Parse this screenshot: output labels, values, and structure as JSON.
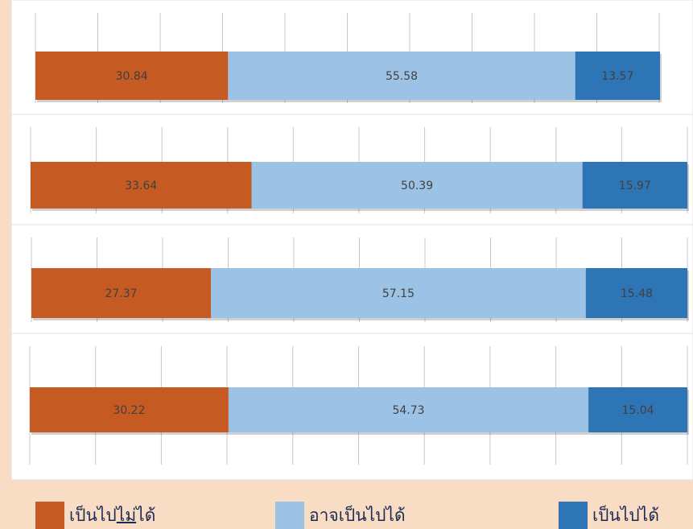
{
  "colors": {
    "background": "#f8dcc3",
    "panel": "#ffffff",
    "grid": "#c8c8c8",
    "text": "#404040",
    "legend_text": "#1b2a55"
  },
  "chart_data": {
    "type": "bar",
    "stacked": true,
    "orientation": "horizontal",
    "percent_scale": [
      0,
      100
    ],
    "grid": true,
    "legend_position": "bottom",
    "series": [
      {
        "name": "เป็นไปไม่ได้",
        "color": "#c55a22"
      },
      {
        "name": "อาจเป็นไปได้",
        "color": "#9cc3e5"
      },
      {
        "name": "เป็นไปได้",
        "color": "#2e75b6"
      }
    ],
    "bars": [
      {
        "values": [
          30.84,
          55.58,
          13.57
        ],
        "labels": [
          "30.84",
          "55.58",
          "13.57"
        ]
      },
      {
        "values": [
          33.64,
          50.39,
          15.97
        ],
        "labels": [
          "33.64",
          "50.39",
          "15.97"
        ]
      },
      {
        "values": [
          27.37,
          57.15,
          15.48
        ],
        "labels": [
          "27.37",
          "57.15",
          "15.48"
        ]
      },
      {
        "values": [
          30.22,
          54.73,
          15.04
        ],
        "labels": [
          "30.22",
          "54.73",
          "15.04"
        ]
      }
    ]
  },
  "legend": {
    "items": [
      {
        "pre": "เป็นไป",
        "underlined": "ไม่",
        "post": "ได้",
        "color": "#c55a22"
      },
      {
        "pre": "อาจเป็นไปได้",
        "underlined": "",
        "post": "",
        "color": "#9cc3e5"
      },
      {
        "pre": "เป็นไปได้",
        "underlined": "",
        "post": "",
        "color": "#2e75b6"
      }
    ]
  }
}
